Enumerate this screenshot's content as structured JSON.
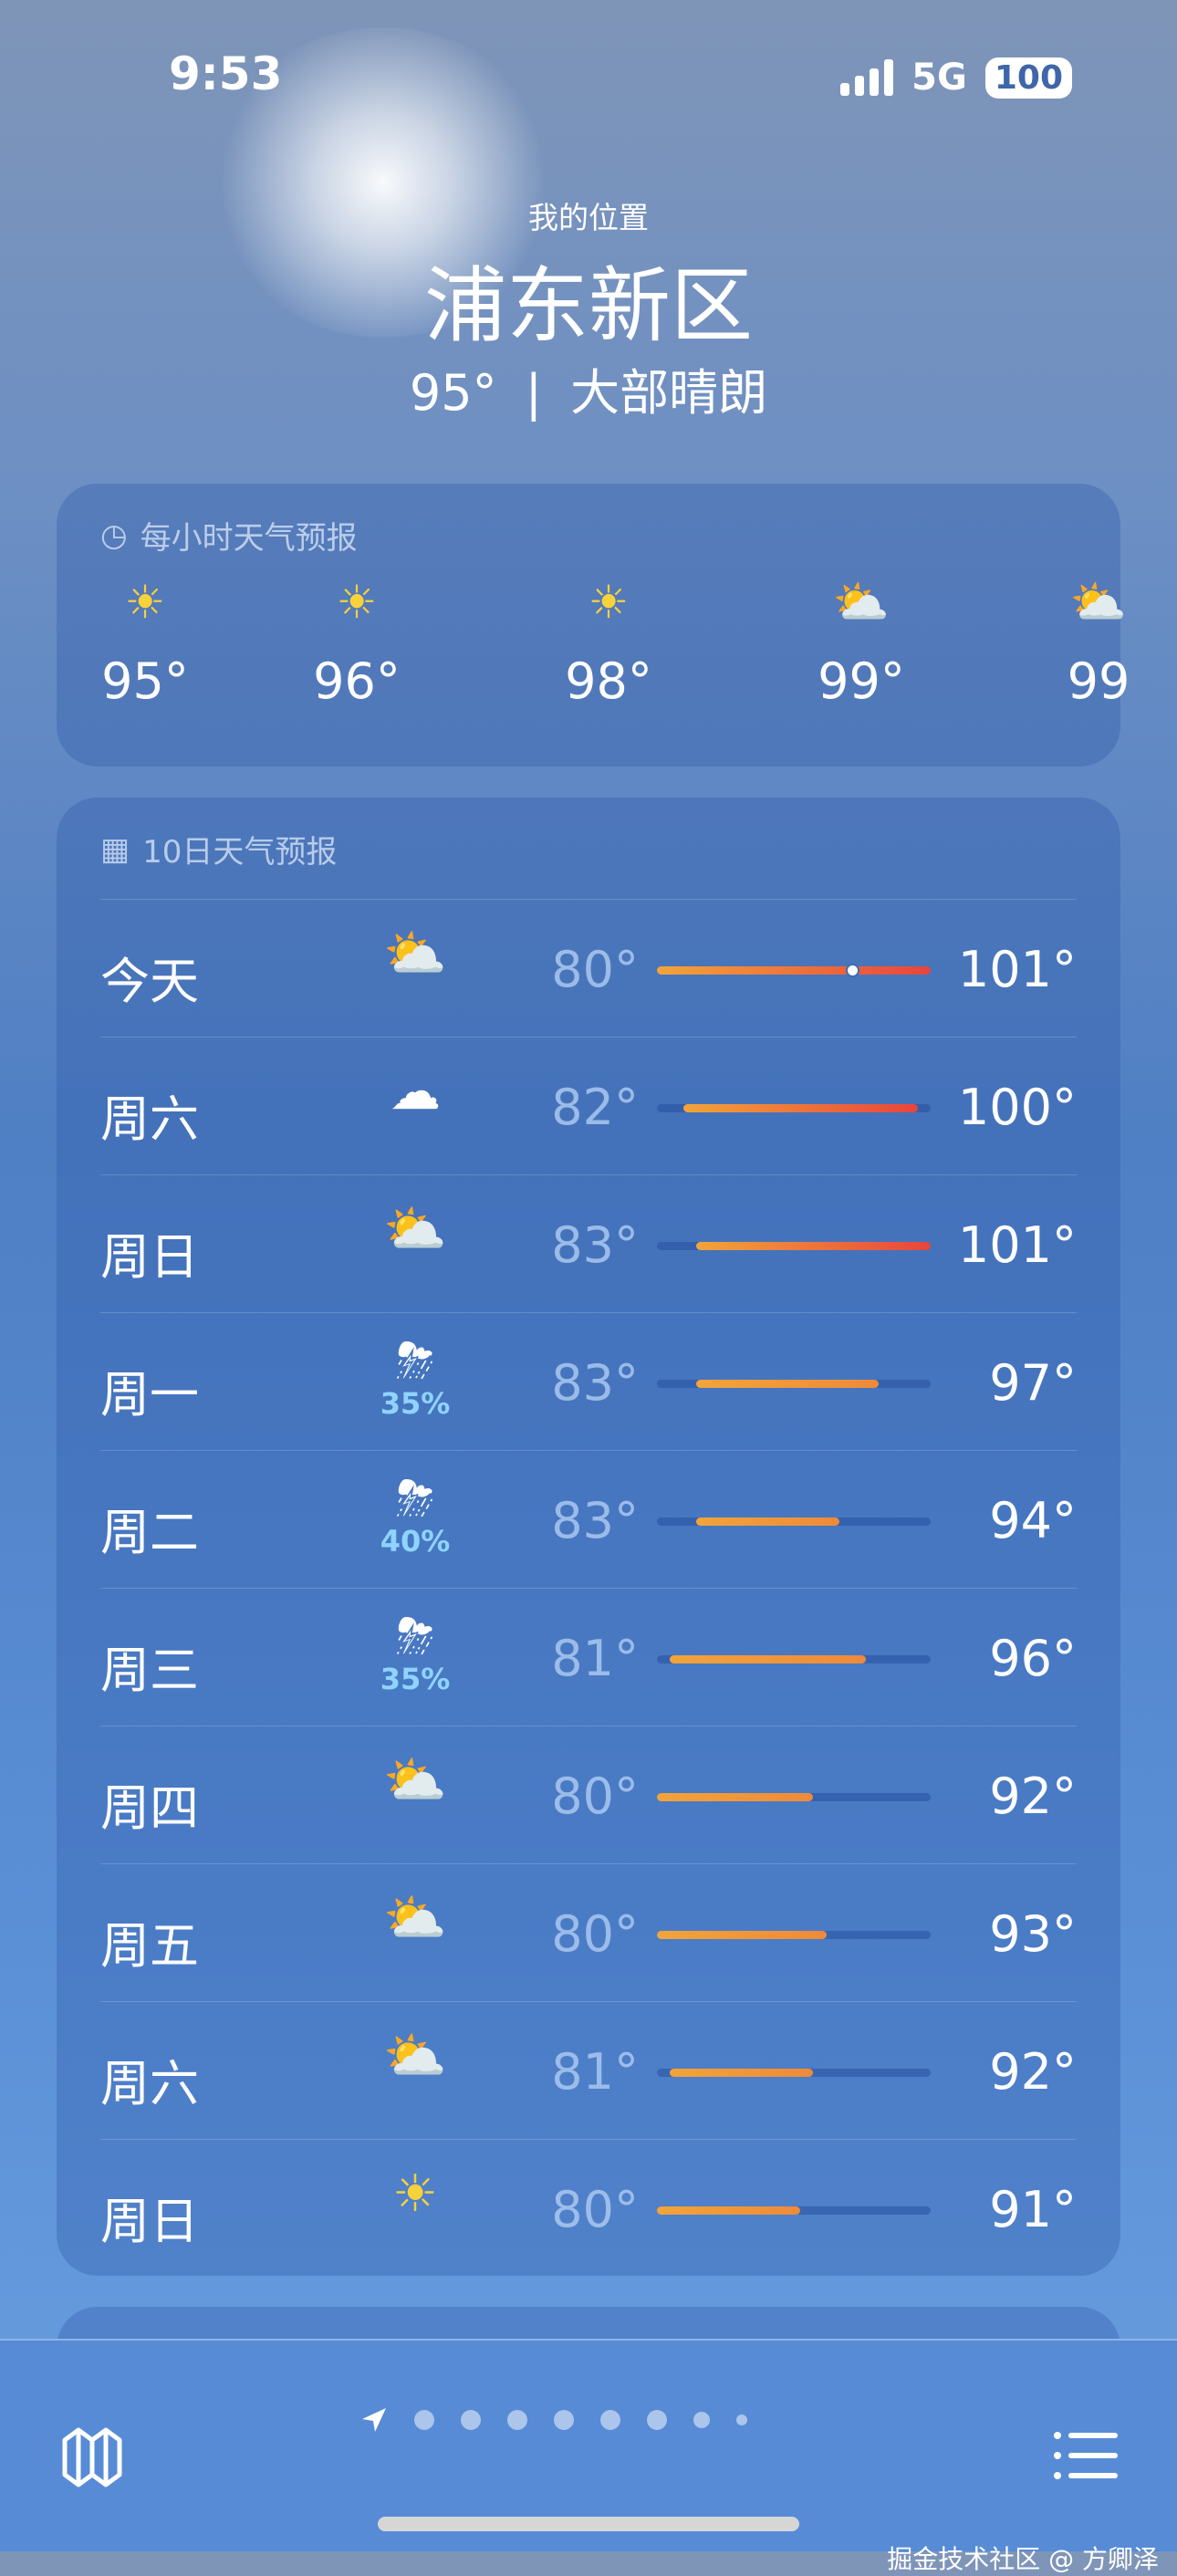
{
  "status": {
    "time": "9:53",
    "network": "5G",
    "battery": "100"
  },
  "header": {
    "subtitle": "我的位置",
    "city": "浦东新区",
    "current": "95°",
    "separator": "|",
    "condition": "大部晴朗"
  },
  "hourly": {
    "title": "每小时天气预报",
    "icon": "clock-icon",
    "items": [
      {
        "icon": "sun",
        "temp": "95°"
      },
      {
        "icon": "sun",
        "temp": "96°"
      },
      {
        "icon": "sun",
        "temp": "98°"
      },
      {
        "icon": "partly-cloudy",
        "temp": "99°"
      },
      {
        "icon": "partly-cloudy",
        "temp": "99"
      }
    ]
  },
  "daily": {
    "title": "10日天气预报",
    "icon": "calendar-icon",
    "range": [
      80,
      101
    ],
    "current_temp": 95,
    "colors": {
      "cool": "#f2a43a",
      "hot": "#e8453c",
      "precip": "#8fd3ff"
    },
    "days": [
      {
        "day": "今天",
        "icon": "partly-cloudy",
        "precip": "",
        "low": "80°",
        "high": "101°",
        "lo": 80,
        "hi": 101
      },
      {
        "day": "周六",
        "icon": "cloud",
        "precip": "",
        "low": "82°",
        "high": "100°",
        "lo": 82,
        "hi": 100
      },
      {
        "day": "周日",
        "icon": "partly-cloudy",
        "precip": "",
        "low": "83°",
        "high": "101°",
        "lo": 83,
        "hi": 101
      },
      {
        "day": "周一",
        "icon": "thunderstorm",
        "precip": "35%",
        "low": "83°",
        "high": "97°",
        "lo": 83,
        "hi": 97
      },
      {
        "day": "周二",
        "icon": "thunderstorm",
        "precip": "40%",
        "low": "83°",
        "high": "94°",
        "lo": 83,
        "hi": 94
      },
      {
        "day": "周三",
        "icon": "thunderstorm",
        "precip": "35%",
        "low": "81°",
        "high": "96°",
        "lo": 81,
        "hi": 96
      },
      {
        "day": "周四",
        "icon": "partly-cloudy",
        "precip": "",
        "low": "80°",
        "high": "92°",
        "lo": 80,
        "hi": 92
      },
      {
        "day": "周五",
        "icon": "partly-cloudy",
        "precip": "",
        "low": "80°",
        "high": "93°",
        "lo": 80,
        "hi": 93
      },
      {
        "day": "周六",
        "icon": "partly-cloudy",
        "precip": "",
        "low": "81°",
        "high": "92°",
        "lo": 81,
        "hi": 92
      },
      {
        "day": "周日",
        "icon": "sun",
        "precip": "",
        "low": "80°",
        "high": "91°",
        "lo": 80,
        "hi": 91
      }
    ]
  },
  "toolbar": {
    "page_count": 9,
    "watermark": "掘金技术社区 @ 方卿泽"
  }
}
